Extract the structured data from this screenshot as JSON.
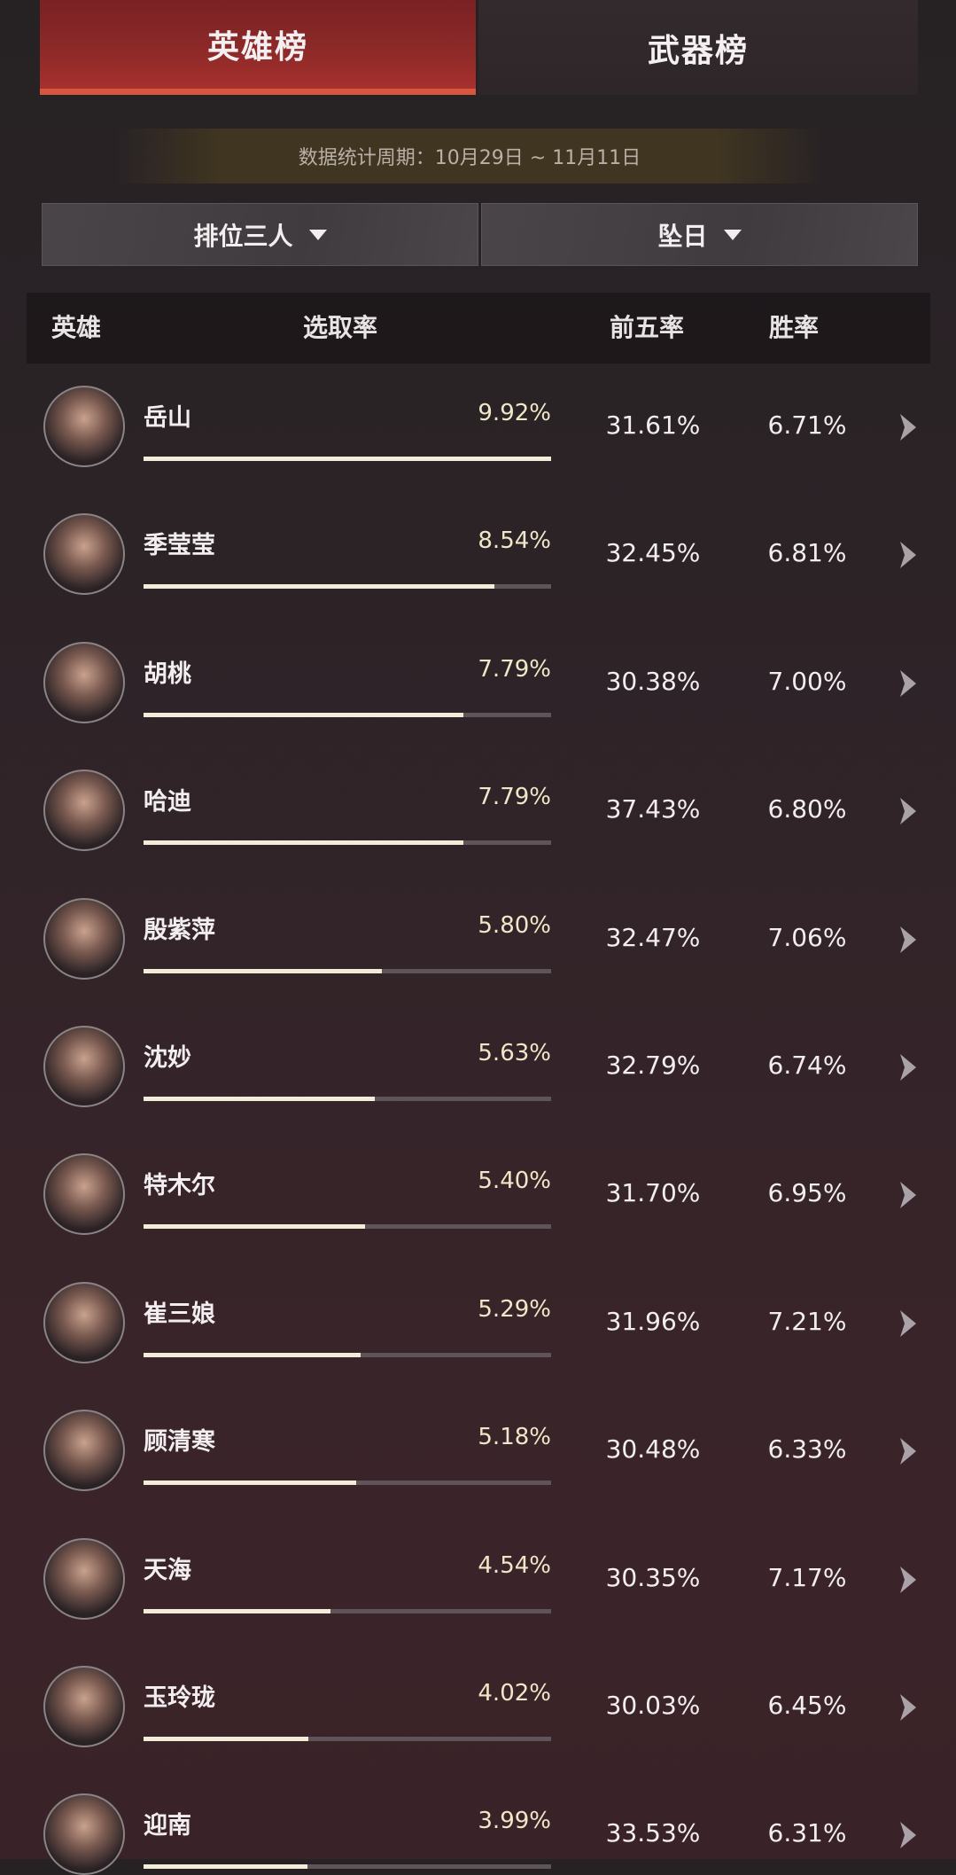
{
  "tabs": [
    {
      "label": "英雄榜",
      "active": true
    },
    {
      "label": "武器榜",
      "active": false
    }
  ],
  "period": "数据统计周期：10月29日 ~ 11月11日",
  "filters": {
    "mode": "排位三人",
    "map": "坠日"
  },
  "columns": {
    "hero": "英雄",
    "pick": "选取率",
    "top5": "前五率",
    "win": "胜率"
  },
  "colors": {
    "accent": "#8e2a28",
    "pick_text": "#f0e6c8",
    "bar_fill": "#f3ecd8",
    "bar_track": "#5e5459"
  },
  "heroes": [
    {
      "name": "岳山",
      "pick": "9.92%",
      "pick_value": 9.92,
      "top5": "31.61%",
      "win": "6.71%"
    },
    {
      "name": "季莹莹",
      "pick": "8.54%",
      "pick_value": 8.54,
      "top5": "32.45%",
      "win": "6.81%"
    },
    {
      "name": "胡桃",
      "pick": "7.79%",
      "pick_value": 7.79,
      "top5": "30.38%",
      "win": "7.00%"
    },
    {
      "name": "哈迪",
      "pick": "7.79%",
      "pick_value": 7.79,
      "top5": "37.43%",
      "win": "6.80%"
    },
    {
      "name": "殷紫萍",
      "pick": "5.80%",
      "pick_value": 5.8,
      "top5": "32.47%",
      "win": "7.06%"
    },
    {
      "name": "沈妙",
      "pick": "5.63%",
      "pick_value": 5.63,
      "top5": "32.79%",
      "win": "6.74%"
    },
    {
      "name": "特木尔",
      "pick": "5.40%",
      "pick_value": 5.4,
      "top5": "31.70%",
      "win": "6.95%"
    },
    {
      "name": "崔三娘",
      "pick": "5.29%",
      "pick_value": 5.29,
      "top5": "31.96%",
      "win": "7.21%"
    },
    {
      "name": "顾清寒",
      "pick": "5.18%",
      "pick_value": 5.18,
      "top5": "30.48%",
      "win": "6.33%"
    },
    {
      "name": "天海",
      "pick": "4.54%",
      "pick_value": 4.54,
      "top5": "30.35%",
      "win": "7.17%"
    },
    {
      "name": "玉玲珑",
      "pick": "4.02%",
      "pick_value": 4.02,
      "top5": "30.03%",
      "win": "6.45%"
    },
    {
      "name": "迎南",
      "pick": "3.99%",
      "pick_value": 3.99,
      "top5": "33.53%",
      "win": "6.31%"
    }
  ]
}
